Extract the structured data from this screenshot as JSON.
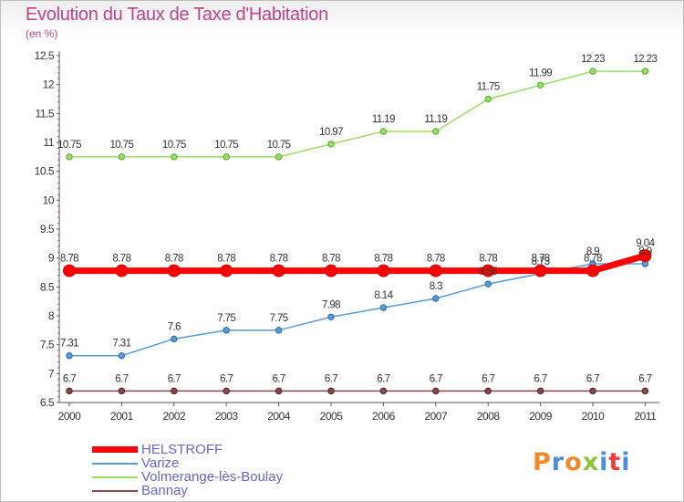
{
  "header": {
    "title": "Evolution du Taux de Taxe d'Habitation",
    "unit": "(en %)"
  },
  "logo": {
    "text": "Proxiti",
    "colors": [
      "#f08b2a",
      "#4a8fd8",
      "#f08b2a",
      "#8bc43a",
      "#4a8fd8",
      "#e8403a",
      "#4a8fd8"
    ]
  },
  "chart_data": {
    "type": "line",
    "title": "Evolution du Taux de Taxe d'Habitation",
    "ylabel": "(en %)",
    "xlabel": "",
    "x": [
      "2000",
      "2001",
      "2002",
      "2003",
      "2004",
      "2005",
      "2006",
      "2007",
      "2008",
      "2009",
      "2010",
      "2011"
    ],
    "ylim": [
      6.5,
      12.5
    ],
    "yticks": [
      "6.5",
      "7",
      "7.5",
      "8",
      "8.5",
      "9",
      "9.5",
      "10",
      "10.5",
      "11",
      "11.5",
      "12",
      "12.5"
    ],
    "grid": false,
    "legend_position": "bottom-left",
    "series": [
      {
        "name": "HELSTROFF",
        "color": "#ff0000",
        "values": [
          8.78,
          8.78,
          8.78,
          8.78,
          8.78,
          8.78,
          8.78,
          8.78,
          8.78,
          8.78,
          8.78,
          9.04
        ],
        "labels": [
          "8.78",
          "8.78",
          "8.78",
          "8.78",
          "8.78",
          "8.78",
          "8.78",
          "8.78",
          "8.78",
          "8.78",
          "8.78",
          "9.04"
        ]
      },
      {
        "name": "Varize",
        "color": "#5b9bd5",
        "values": [
          7.31,
          7.31,
          7.6,
          7.75,
          7.75,
          7.98,
          8.14,
          8.3,
          8.55,
          8.73,
          8.9,
          8.9
        ],
        "labels": [
          "7.31",
          "7.31",
          "7.6",
          "7.75",
          "7.75",
          "7.98",
          "8.14",
          "8.3",
          "8.55",
          "8.73",
          "8.9",
          "8.9"
        ]
      },
      {
        "name": "Volmerange-lès-Boulay",
        "color": "#99dd66",
        "values": [
          10.75,
          10.75,
          10.75,
          10.75,
          10.75,
          10.97,
          11.19,
          11.19,
          11.75,
          11.99,
          12.23,
          12.23
        ],
        "labels": [
          "10.75",
          "10.75",
          "10.75",
          "10.75",
          "10.75",
          "10.97",
          "11.19",
          "11.19",
          "11.75",
          "11.99",
          "12.23",
          "12.23"
        ]
      },
      {
        "name": "Bannay",
        "color": "#8b4a4a",
        "values": [
          6.7,
          6.7,
          6.7,
          6.7,
          6.7,
          6.7,
          6.7,
          6.7,
          6.7,
          6.7,
          6.7,
          6.7
        ],
        "labels": [
          "6.7",
          "6.7",
          "6.7",
          "6.7",
          "6.7",
          "6.7",
          "6.7",
          "6.7",
          "6.7",
          "6.7",
          "6.7",
          "6.7"
        ]
      }
    ]
  }
}
